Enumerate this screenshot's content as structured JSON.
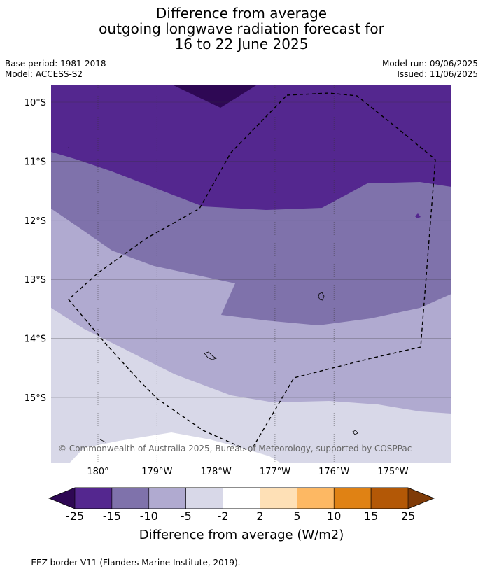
{
  "title": {
    "lines": [
      "Difference from average",
      "outgoing longwave radiation forecast for",
      "16 to 22 June 2025"
    ]
  },
  "meta": {
    "base_period": "Base period: 1981-2018",
    "model": "Model: ACCESS-S2",
    "model_run": "Model run: 09/06/2025",
    "issued": "Issued: 11/06/2025"
  },
  "map": {
    "lat_ticks": [
      {
        "value": -10,
        "label": "10°S"
      },
      {
        "value": -11,
        "label": "11°S"
      },
      {
        "value": -12,
        "label": "12°S"
      },
      {
        "value": -13,
        "label": "13°S"
      },
      {
        "value": -14,
        "label": "14°S"
      },
      {
        "value": -15,
        "label": "15°S"
      }
    ],
    "lon_ticks": [
      {
        "value": 180,
        "label": "180°"
      },
      {
        "value": 181,
        "label": "179°W"
      },
      {
        "value": 182,
        "label": "178°W"
      },
      {
        "value": 183,
        "label": "177°W"
      },
      {
        "value": 184,
        "label": "176°W"
      },
      {
        "value": 185,
        "label": "175°W"
      }
    ],
    "copyright": "© Commonwealth of Australia 2025, Bureau of Meteorology, supported by COSPPac",
    "colors": {
      "lt_m25": "#2e0854",
      "m25_m15": "#54278f",
      "m15_m10": "#7f72ab",
      "m10_m5": "#b0aad0",
      "m5_m2": "#d8d8e8",
      "m2_2": "#ffffff",
      "2_5": "#fee0b6",
      "5_10": "#fdb863",
      "10_15": "#e08214",
      "15_25": "#b35806",
      "gt_25": "#7f3b08"
    }
  },
  "colorbar": {
    "title": "Difference from average (W/m2)",
    "labels": [
      "-25",
      "-15",
      "-10",
      "-5",
      "-2",
      "2",
      "5",
      "10",
      "15",
      "25"
    ],
    "colors": [
      "#54278f",
      "#7f72ab",
      "#b0aad0",
      "#d8d8e8",
      "#ffffff",
      "#fee0b6",
      "#fdb863",
      "#e08214",
      "#b35806"
    ],
    "under_color": "#2e0854",
    "over_color": "#7f3b08"
  },
  "footnote": "--  --  -- EEZ border V11 (Flanders Marine Institute, 2019)."
}
